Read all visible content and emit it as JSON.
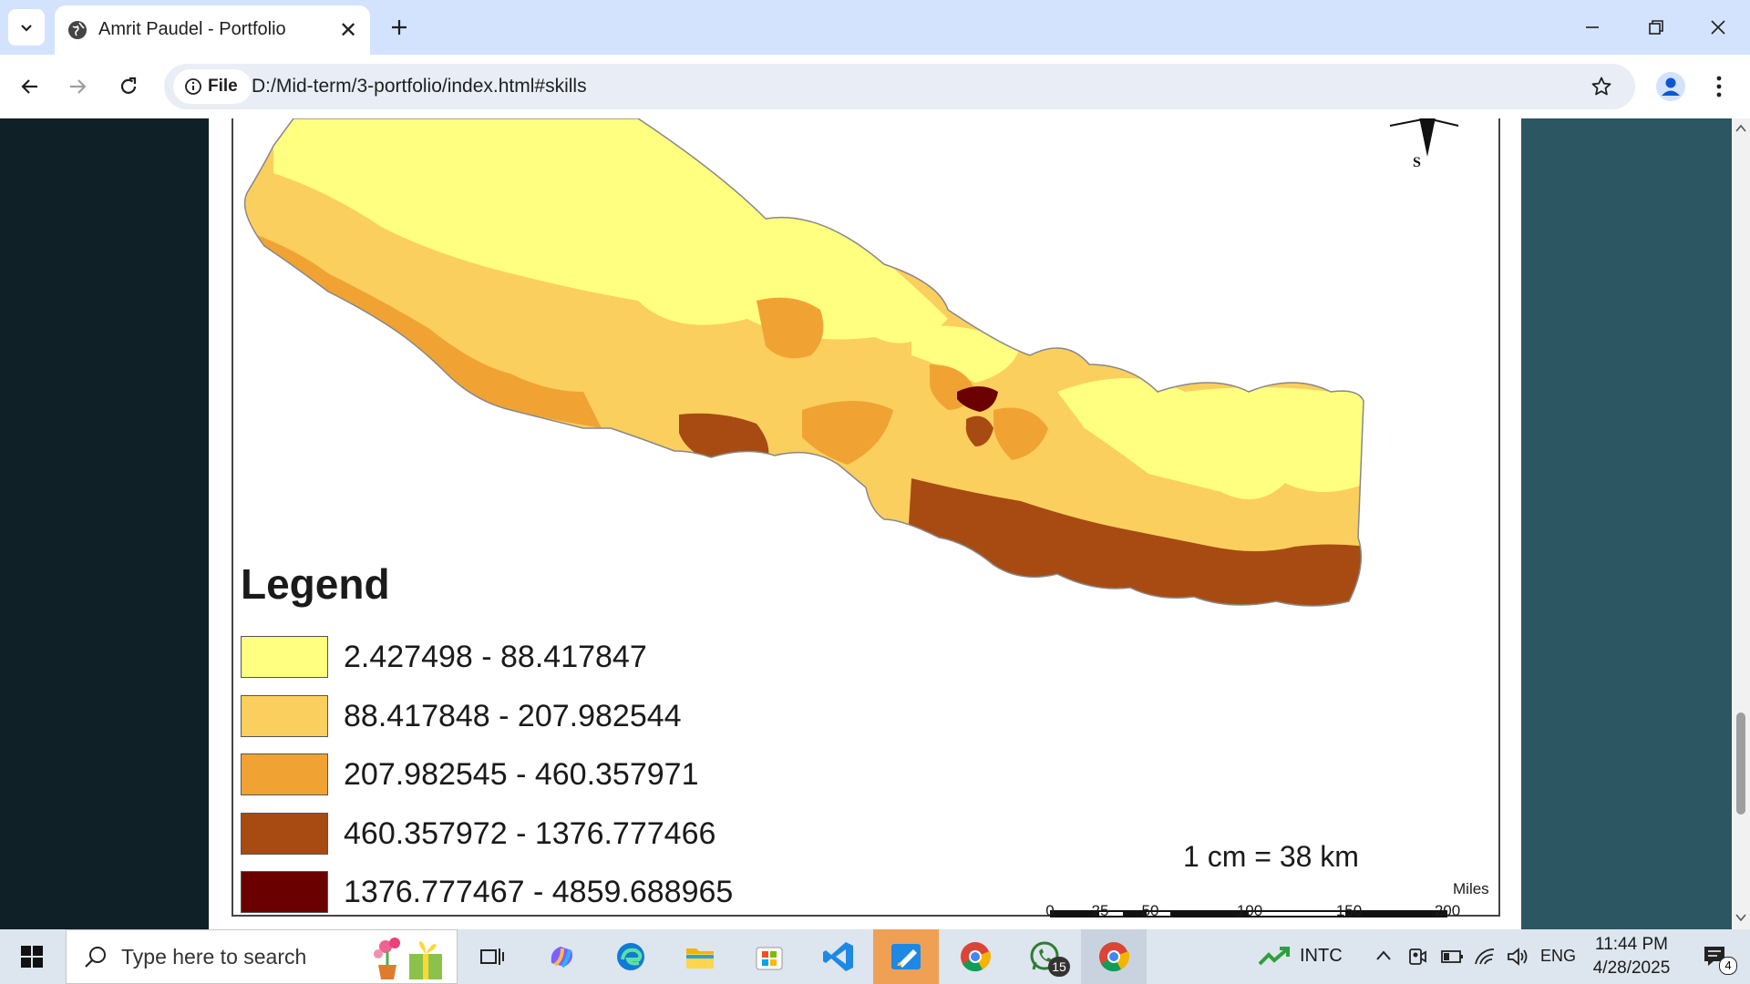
{
  "browser": {
    "tab_title": "Amrit Paudel - Portfolio",
    "new_tab_icon": "plus-icon",
    "site_info_label": "File",
    "url": "D:/Mid-term/3-portfolio/index.html#skills"
  },
  "map": {
    "compass_label": "S",
    "legend_title": "Legend",
    "legend": [
      {
        "label": "2.427498 - 88.417847",
        "color": "#ffff80"
      },
      {
        "label": "88.417848 - 207.982544",
        "color": "#fbcf5d"
      },
      {
        "label": "207.982545 - 460.357971",
        "color": "#f0a333"
      },
      {
        "label": "460.357972 - 1376.777466",
        "color": "#a84b12"
      },
      {
        "label": "1376.777467 - 4859.688965",
        "color": "#6b0000"
      }
    ],
    "scale_text": "1 cm = 38 km",
    "scale_ticks": [
      "0",
      "25",
      "50",
      "100",
      "150",
      "200"
    ],
    "scale_unit": "Miles"
  },
  "taskbar": {
    "search_placeholder": "Type here to search",
    "stock_ticker": "INTC",
    "language": "ENG",
    "time": "11:44 PM",
    "date": "4/28/2025",
    "whatsapp_badge": "15",
    "notification_count": "4"
  }
}
